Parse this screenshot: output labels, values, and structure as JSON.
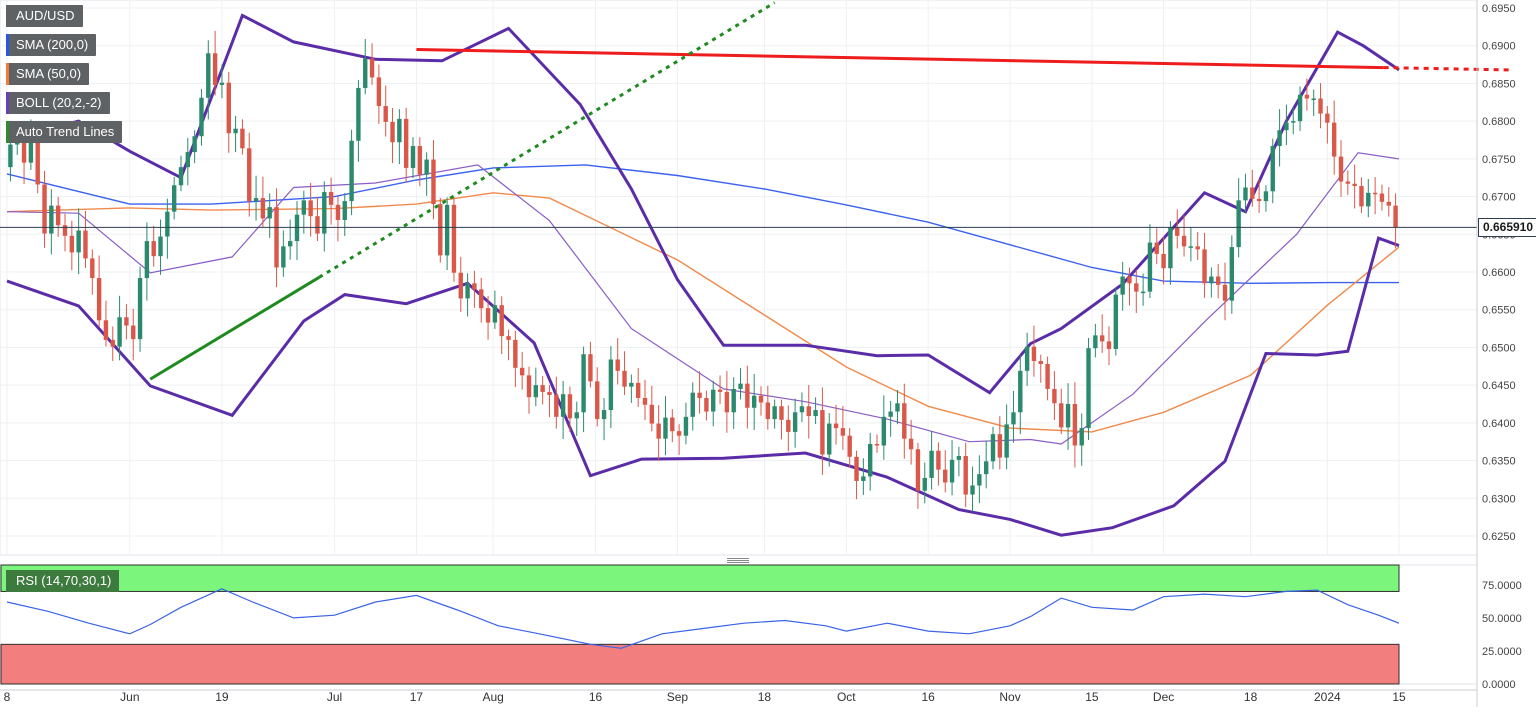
{
  "legend": [
    {
      "label": "AUD/USD",
      "color": "#5f6265"
    },
    {
      "label": "SMA (200,0)",
      "color": "#2a55e8"
    },
    {
      "label": "SMA (50,0)",
      "color": "#f07b3c"
    },
    {
      "label": "BOLL (20,2,-2)",
      "color": "#6a3fb5"
    },
    {
      "label": "Auto Trend Lines",
      "color": "#2e8b2e"
    }
  ],
  "last_price_label": "0.665910",
  "rsi_label": "RSI (14,70,30,1)",
  "colors": {
    "up": "#2b8a6e",
    "down": "#d9584a",
    "sma200": "#3c62f0",
    "sma50": "#f08a4b",
    "boll_band": "#5b2ca8",
    "boll_mid": "#8a5cc6",
    "resistance": "#ee1c1c",
    "support": "#1f8a1f",
    "rsi": "#3a63e8",
    "overbought": "#7cf57c",
    "oversold": "#f37e7e"
  },
  "chart_data": [
    {
      "type": "candlestick",
      "title": "AUD/USD",
      "y_ticks": [
        "0.6950",
        "0.6900",
        "0.6850",
        "0.6800",
        "0.6750",
        "0.6700",
        "0.6650",
        "0.6600",
        "0.6550",
        "0.6500",
        "0.6450",
        "0.6400",
        "0.6350",
        "0.6300",
        "0.6250"
      ],
      "ylim": [
        0.6228,
        0.696
      ],
      "x_ticks": [
        {
          "label": "8",
          "day": 0
        },
        {
          "label": "Jun",
          "day": 24
        },
        {
          "label": "19",
          "day": 42
        },
        {
          "label": "Jul",
          "day": 64
        },
        {
          "label": "17",
          "day": 80
        },
        {
          "label": "Aug",
          "day": 95
        },
        {
          "label": "16",
          "day": 115
        },
        {
          "label": "Sep",
          "day": 131
        },
        {
          "label": "18",
          "day": 148
        },
        {
          "label": "Oct",
          "day": 164
        },
        {
          "label": "16",
          "day": 180
        },
        {
          "label": "Nov",
          "day": 196
        },
        {
          "label": "15",
          "day": 212
        },
        {
          "label": "Dec",
          "day": 226
        },
        {
          "label": "18",
          "day": 243
        },
        {
          "label": "2024",
          "day": 258
        },
        {
          "label": "15",
          "day": 272
        }
      ],
      "close": [
        0.6769,
        0.6771,
        0.6745,
        0.6782,
        0.6716,
        0.6651,
        0.6688,
        0.6662,
        0.6648,
        0.6626,
        0.6655,
        0.6618,
        0.6592,
        0.6536,
        0.651,
        0.6501,
        0.654,
        0.6529,
        0.6511,
        0.6592,
        0.6641,
        0.6621,
        0.6647,
        0.668,
        0.6715,
        0.6739,
        0.6759,
        0.678,
        0.6831,
        0.689,
        0.6848,
        0.6851,
        0.6784,
        0.679,
        0.6764,
        0.6694,
        0.6698,
        0.6671,
        0.6686,
        0.6606,
        0.6634,
        0.6641,
        0.6676,
        0.6695,
        0.6674,
        0.6651,
        0.6706,
        0.6689,
        0.6669,
        0.6694,
        0.6774,
        0.6844,
        0.6883,
        0.6858,
        0.682,
        0.6799,
        0.6772,
        0.6803,
        0.6738,
        0.6767,
        0.6729,
        0.6749,
        0.669,
        0.6622,
        0.6689,
        0.6599,
        0.6565,
        0.6585,
        0.6577,
        0.6552,
        0.6533,
        0.6556,
        0.6515,
        0.651,
        0.6473,
        0.6463,
        0.6434,
        0.645,
        0.6441,
        0.6437,
        0.6408,
        0.6438,
        0.6406,
        0.6414,
        0.6491,
        0.6455,
        0.6405,
        0.6417,
        0.6484,
        0.6469,
        0.6448,
        0.6453,
        0.6433,
        0.6424,
        0.6399,
        0.6379,
        0.6407,
        0.6389,
        0.6383,
        0.6408,
        0.644,
        0.6433,
        0.6415,
        0.6444,
        0.6441,
        0.6414,
        0.6445,
        0.6452,
        0.642,
        0.6436,
        0.6427,
        0.6405,
        0.6422,
        0.6404,
        0.6388,
        0.6414,
        0.6422,
        0.6409,
        0.6417,
        0.6358,
        0.6399,
        0.6393,
        0.6383,
        0.6355,
        0.6323,
        0.6329,
        0.6372,
        0.637,
        0.6408,
        0.6415,
        0.6426,
        0.6379,
        0.6365,
        0.631,
        0.6327,
        0.6363,
        0.6338,
        0.6321,
        0.6351,
        0.6356,
        0.6305,
        0.6317,
        0.6332,
        0.6349,
        0.6385,
        0.6354,
        0.6398,
        0.6414,
        0.6469,
        0.6501,
        0.6482,
        0.6478,
        0.6445,
        0.6426,
        0.6394,
        0.6425,
        0.637,
        0.6393,
        0.6499,
        0.6516,
        0.6508,
        0.6498,
        0.657,
        0.6594,
        0.6585,
        0.6574,
        0.6574,
        0.6639,
        0.6624,
        0.6605,
        0.6659,
        0.6648,
        0.6634,
        0.6634,
        0.663,
        0.6585,
        0.6594,
        0.6583,
        0.6562,
        0.6633,
        0.6695,
        0.6712,
        0.6697,
        0.6694,
        0.6707,
        0.6767,
        0.6788,
        0.6798,
        0.68,
        0.6835,
        0.683,
        0.683,
        0.681,
        0.6798,
        0.6753,
        0.672,
        0.6717,
        0.6714,
        0.6687,
        0.6705,
        0.6704,
        0.6693,
        0.6688,
        0.6659
      ],
      "sma200_approx": [
        [
          0,
          0.673
        ],
        [
          24,
          0.669
        ],
        [
          40,
          0.669
        ],
        [
          64,
          0.67
        ],
        [
          80,
          0.6722
        ],
        [
          95,
          0.6738
        ],
        [
          113,
          0.6742
        ],
        [
          131,
          0.6728
        ],
        [
          148,
          0.671
        ],
        [
          164,
          0.6689
        ],
        [
          180,
          0.6666
        ],
        [
          196,
          0.6636
        ],
        [
          212,
          0.6606
        ],
        [
          226,
          0.6588
        ],
        [
          243,
          0.6585
        ],
        [
          258,
          0.6586
        ],
        [
          272,
          0.6586
        ]
      ],
      "sma50_approx": [
        [
          0,
          0.668
        ],
        [
          24,
          0.6685
        ],
        [
          40,
          0.6682
        ],
        [
          64,
          0.6684
        ],
        [
          80,
          0.669
        ],
        [
          95,
          0.6705
        ],
        [
          106,
          0.6698
        ],
        [
          131,
          0.6616
        ],
        [
          148,
          0.6543
        ],
        [
          164,
          0.6474
        ],
        [
          180,
          0.6422
        ],
        [
          196,
          0.6393
        ],
        [
          212,
          0.6388
        ],
        [
          226,
          0.6414
        ],
        [
          243,
          0.6463
        ],
        [
          258,
          0.6556
        ],
        [
          272,
          0.6633
        ]
      ],
      "boll_upper_approx": [
        [
          0,
          0.6775
        ],
        [
          14,
          0.68
        ],
        [
          24,
          0.676
        ],
        [
          34,
          0.6725
        ],
        [
          46,
          0.694
        ],
        [
          56,
          0.6905
        ],
        [
          72,
          0.6882
        ],
        [
          85,
          0.688
        ],
        [
          98,
          0.6923
        ],
        [
          112,
          0.6822
        ],
        [
          122,
          0.671
        ],
        [
          131,
          0.659
        ],
        [
          140,
          0.6503
        ],
        [
          156,
          0.6503
        ],
        [
          170,
          0.6489
        ],
        [
          180,
          0.649
        ],
        [
          192,
          0.644
        ],
        [
          200,
          0.6505
        ],
        [
          206,
          0.6525
        ],
        [
          218,
          0.6584
        ],
        [
          234,
          0.6705
        ],
        [
          242,
          0.668
        ],
        [
          250,
          0.68
        ],
        [
          260,
          0.6918
        ],
        [
          265,
          0.69
        ],
        [
          272,
          0.6868
        ]
      ],
      "boll_lower_approx": [
        [
          0,
          0.6588
        ],
        [
          14,
          0.6555
        ],
        [
          28,
          0.6449
        ],
        [
          44,
          0.641
        ],
        [
          58,
          0.6535
        ],
        [
          66,
          0.657
        ],
        [
          78,
          0.6558
        ],
        [
          90,
          0.6585
        ],
        [
          103,
          0.6506
        ],
        [
          114,
          0.633
        ],
        [
          124,
          0.6352
        ],
        [
          140,
          0.6353
        ],
        [
          156,
          0.636
        ],
        [
          172,
          0.6328
        ],
        [
          186,
          0.6285
        ],
        [
          196,
          0.6272
        ],
        [
          206,
          0.6251
        ],
        [
          216,
          0.6261
        ],
        [
          228,
          0.629
        ],
        [
          238,
          0.6349
        ],
        [
          246,
          0.6492
        ],
        [
          256,
          0.649
        ],
        [
          262,
          0.6495
        ],
        [
          268,
          0.6645
        ],
        [
          272,
          0.6635
        ]
      ],
      "boll_mid_approx": [
        [
          0,
          0.668
        ],
        [
          14,
          0.6678
        ],
        [
          28,
          0.6599
        ],
        [
          44,
          0.662
        ],
        [
          56,
          0.6712
        ],
        [
          72,
          0.6718
        ],
        [
          92,
          0.6742
        ],
        [
          106,
          0.6668
        ],
        [
          122,
          0.6525
        ],
        [
          140,
          0.6445
        ],
        [
          156,
          0.6428
        ],
        [
          172,
          0.6405
        ],
        [
          188,
          0.6375
        ],
        [
          200,
          0.6378
        ],
        [
          206,
          0.6372
        ],
        [
          220,
          0.6438
        ],
        [
          234,
          0.6534
        ],
        [
          252,
          0.665
        ],
        [
          264,
          0.6758
        ],
        [
          272,
          0.675
        ]
      ],
      "resistance_line": {
        "start": [
          80,
          0.6895
        ],
        "end": [
          269,
          0.6871
        ],
        "extend_to": 294
      },
      "support_line": {
        "start": [
          28,
          0.6458
        ],
        "end": [
          61,
          0.6593
        ],
        "extend_to": 150
      },
      "rsi": {
        "ylim": [
          0,
          90
        ],
        "ticks": [
          "75.0000",
          "50.0000",
          "25.0000",
          "0.0000"
        ],
        "overbought": 70,
        "oversold": 30,
        "values_approx": [
          [
            0,
            62
          ],
          [
            8,
            55
          ],
          [
            16,
            46
          ],
          [
            24,
            38
          ],
          [
            28,
            45
          ],
          [
            34,
            58
          ],
          [
            42,
            72
          ],
          [
            48,
            62
          ],
          [
            56,
            50
          ],
          [
            64,
            52
          ],
          [
            72,
            62
          ],
          [
            80,
            67
          ],
          [
            88,
            56
          ],
          [
            96,
            44
          ],
          [
            104,
            38
          ],
          [
            114,
            30
          ],
          [
            120,
            27
          ],
          [
            128,
            38
          ],
          [
            136,
            42
          ],
          [
            144,
            46
          ],
          [
            152,
            48
          ],
          [
            160,
            44
          ],
          [
            164,
            40
          ],
          [
            172,
            46
          ],
          [
            180,
            40
          ],
          [
            188,
            38
          ],
          [
            196,
            44
          ],
          [
            200,
            51
          ],
          [
            206,
            65
          ],
          [
            212,
            58
          ],
          [
            220,
            56
          ],
          [
            226,
            66
          ],
          [
            234,
            68
          ],
          [
            242,
            66
          ],
          [
            250,
            70
          ],
          [
            256,
            71
          ],
          [
            262,
            60
          ],
          [
            268,
            52
          ],
          [
            272,
            46
          ]
        ]
      }
    }
  ]
}
